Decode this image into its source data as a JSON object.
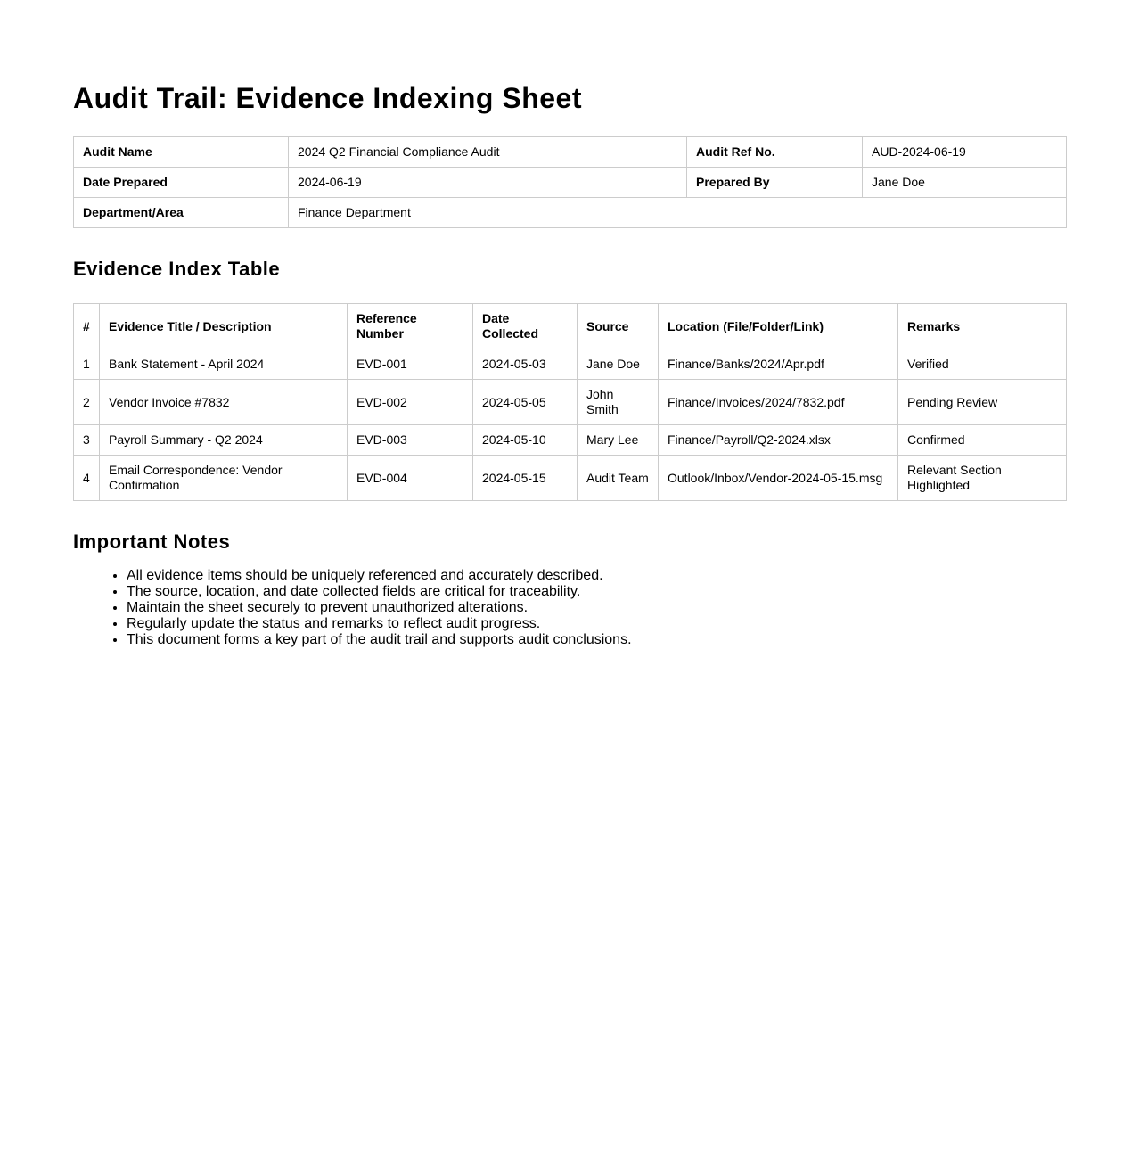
{
  "title": "Audit Trail: Evidence Indexing Sheet",
  "meta": {
    "audit_name_label": "Audit Name",
    "audit_name": "2024 Q2 Financial Compliance Audit",
    "audit_ref_label": "Audit Ref No.",
    "audit_ref": "AUD-2024-06-19",
    "date_prepared_label": "Date Prepared",
    "date_prepared": "2024-06-19",
    "prepared_by_label": "Prepared By",
    "prepared_by": "Jane Doe",
    "department_label": "Department/Area",
    "department": "Finance Department"
  },
  "evidence": {
    "heading": "Evidence Index Table",
    "columns": [
      "#",
      "Evidence Title / Description",
      "Reference Number",
      "Date Collected",
      "Source",
      "Location (File/Folder/Link)",
      "Remarks"
    ],
    "rows": [
      [
        "1",
        "Bank Statement - April 2024",
        "EVD-001",
        "2024-05-03",
        "Jane Doe",
        "Finance/Banks/2024/Apr.pdf",
        "Verified"
      ],
      [
        "2",
        "Vendor Invoice #7832",
        "EVD-002",
        "2024-05-05",
        "John Smith",
        "Finance/Invoices/2024/7832.pdf",
        "Pending Review"
      ],
      [
        "3",
        "Payroll Summary - Q2 2024",
        "EVD-003",
        "2024-05-10",
        "Mary Lee",
        "Finance/Payroll/Q2-2024.xlsx",
        "Confirmed"
      ],
      [
        "4",
        "Email Correspondence: Vendor Confirmation",
        "EVD-004",
        "2024-05-15",
        "Audit Team",
        "Outlook/Inbox/Vendor-2024-05-15.msg",
        "Relevant Section Highlighted"
      ]
    ]
  },
  "notes": {
    "heading": "Important Notes",
    "items": [
      "All evidence items should be uniquely referenced and accurately described.",
      "The source, location, and date collected fields are critical for traceability.",
      "Maintain the sheet securely to prevent unauthorized alterations.",
      "Regularly update the status and remarks to reflect audit progress.",
      "This document forms a key part of the audit trail and supports audit conclusions."
    ]
  }
}
